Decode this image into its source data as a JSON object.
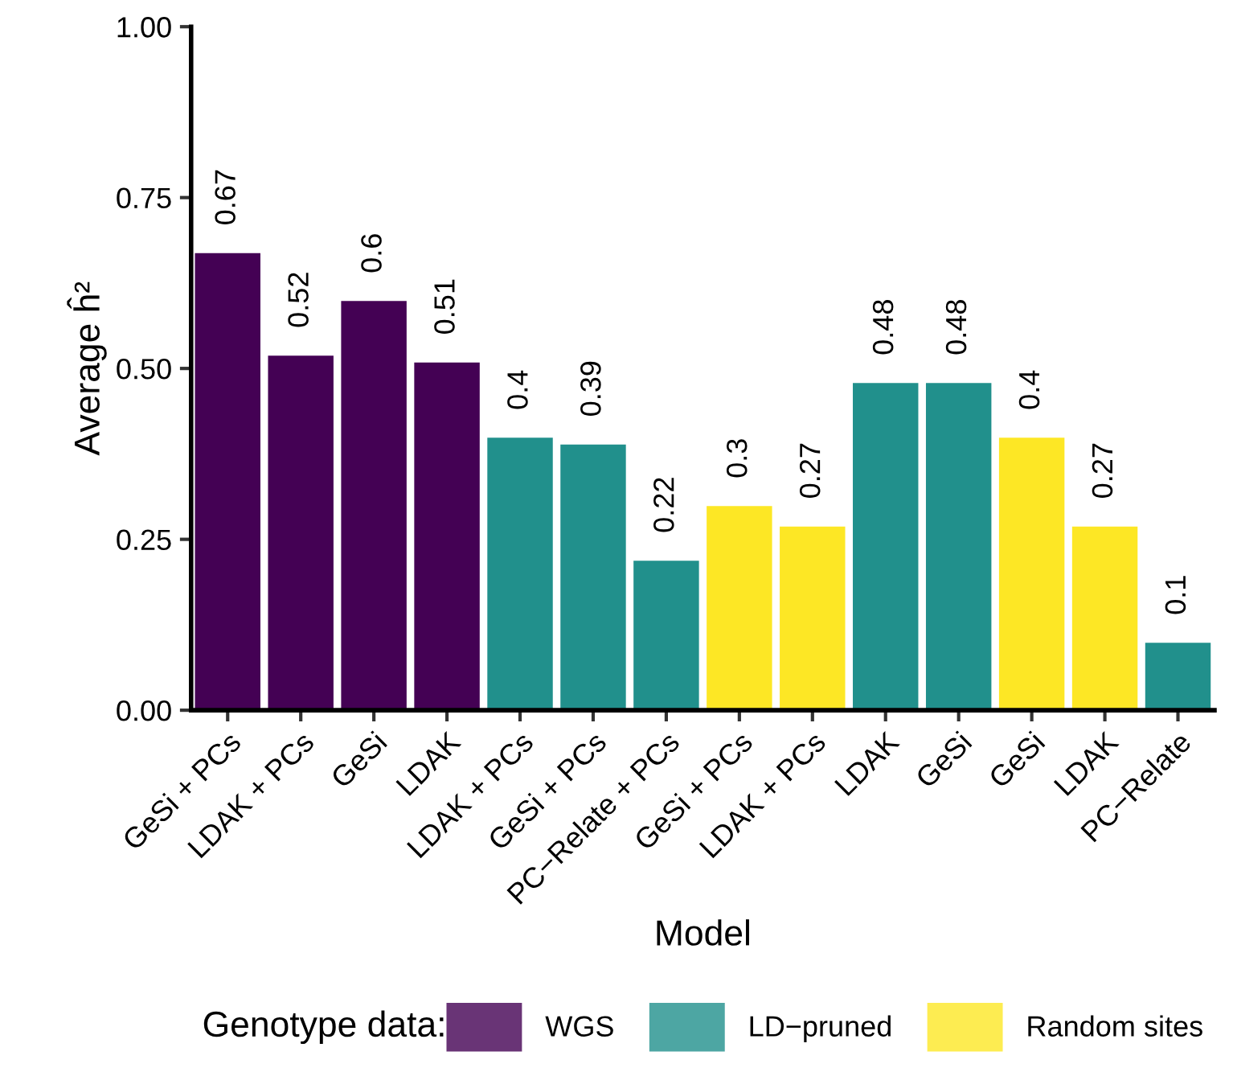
{
  "chart_data": {
    "type": "bar",
    "categories": [
      "GeSi + PCs",
      "LDAK + PCs",
      "GeSi",
      "LDAK",
      "LDAK + PCs",
      "GeSi + PCs",
      "PC−Relate + PCs",
      "GeSi + PCs",
      "LDAK + PCs",
      "LDAK",
      "GeSi",
      "GeSi",
      "LDAK",
      "PC−Relate"
    ],
    "series": [
      {
        "name": "WGS",
        "color": "#440154",
        "values": [
          0.67,
          0.52,
          0.6,
          0.51,
          null,
          null,
          null,
          null,
          null,
          null,
          null,
          null,
          null,
          null
        ]
      },
      {
        "name": "LD−pruned",
        "color": "#21908c",
        "values": [
          null,
          null,
          null,
          null,
          0.4,
          0.39,
          0.22,
          null,
          null,
          0.48,
          0.48,
          null,
          null,
          0.1
        ]
      },
      {
        "name": "Random sites",
        "color": "#fde725",
        "values": [
          null,
          null,
          null,
          null,
          null,
          null,
          null,
          0.3,
          0.27,
          null,
          null,
          0.4,
          0.27,
          null
        ]
      }
    ],
    "xlabel": "Model",
    "ylabel": "Average ĥ²",
    "legend_title": "Genotype data:",
    "ylim": [
      0,
      1
    ],
    "yticks": [
      {
        "value": 0,
        "label": "0.00"
      },
      {
        "value": 0.25,
        "label": "0.25"
      },
      {
        "value": 0.5,
        "label": "0.50"
      },
      {
        "value": 0.75,
        "label": "0.75"
      },
      {
        "value": 1,
        "label": "1.00"
      }
    ],
    "data_labels": true,
    "grid": false,
    "legend": "bottom"
  }
}
